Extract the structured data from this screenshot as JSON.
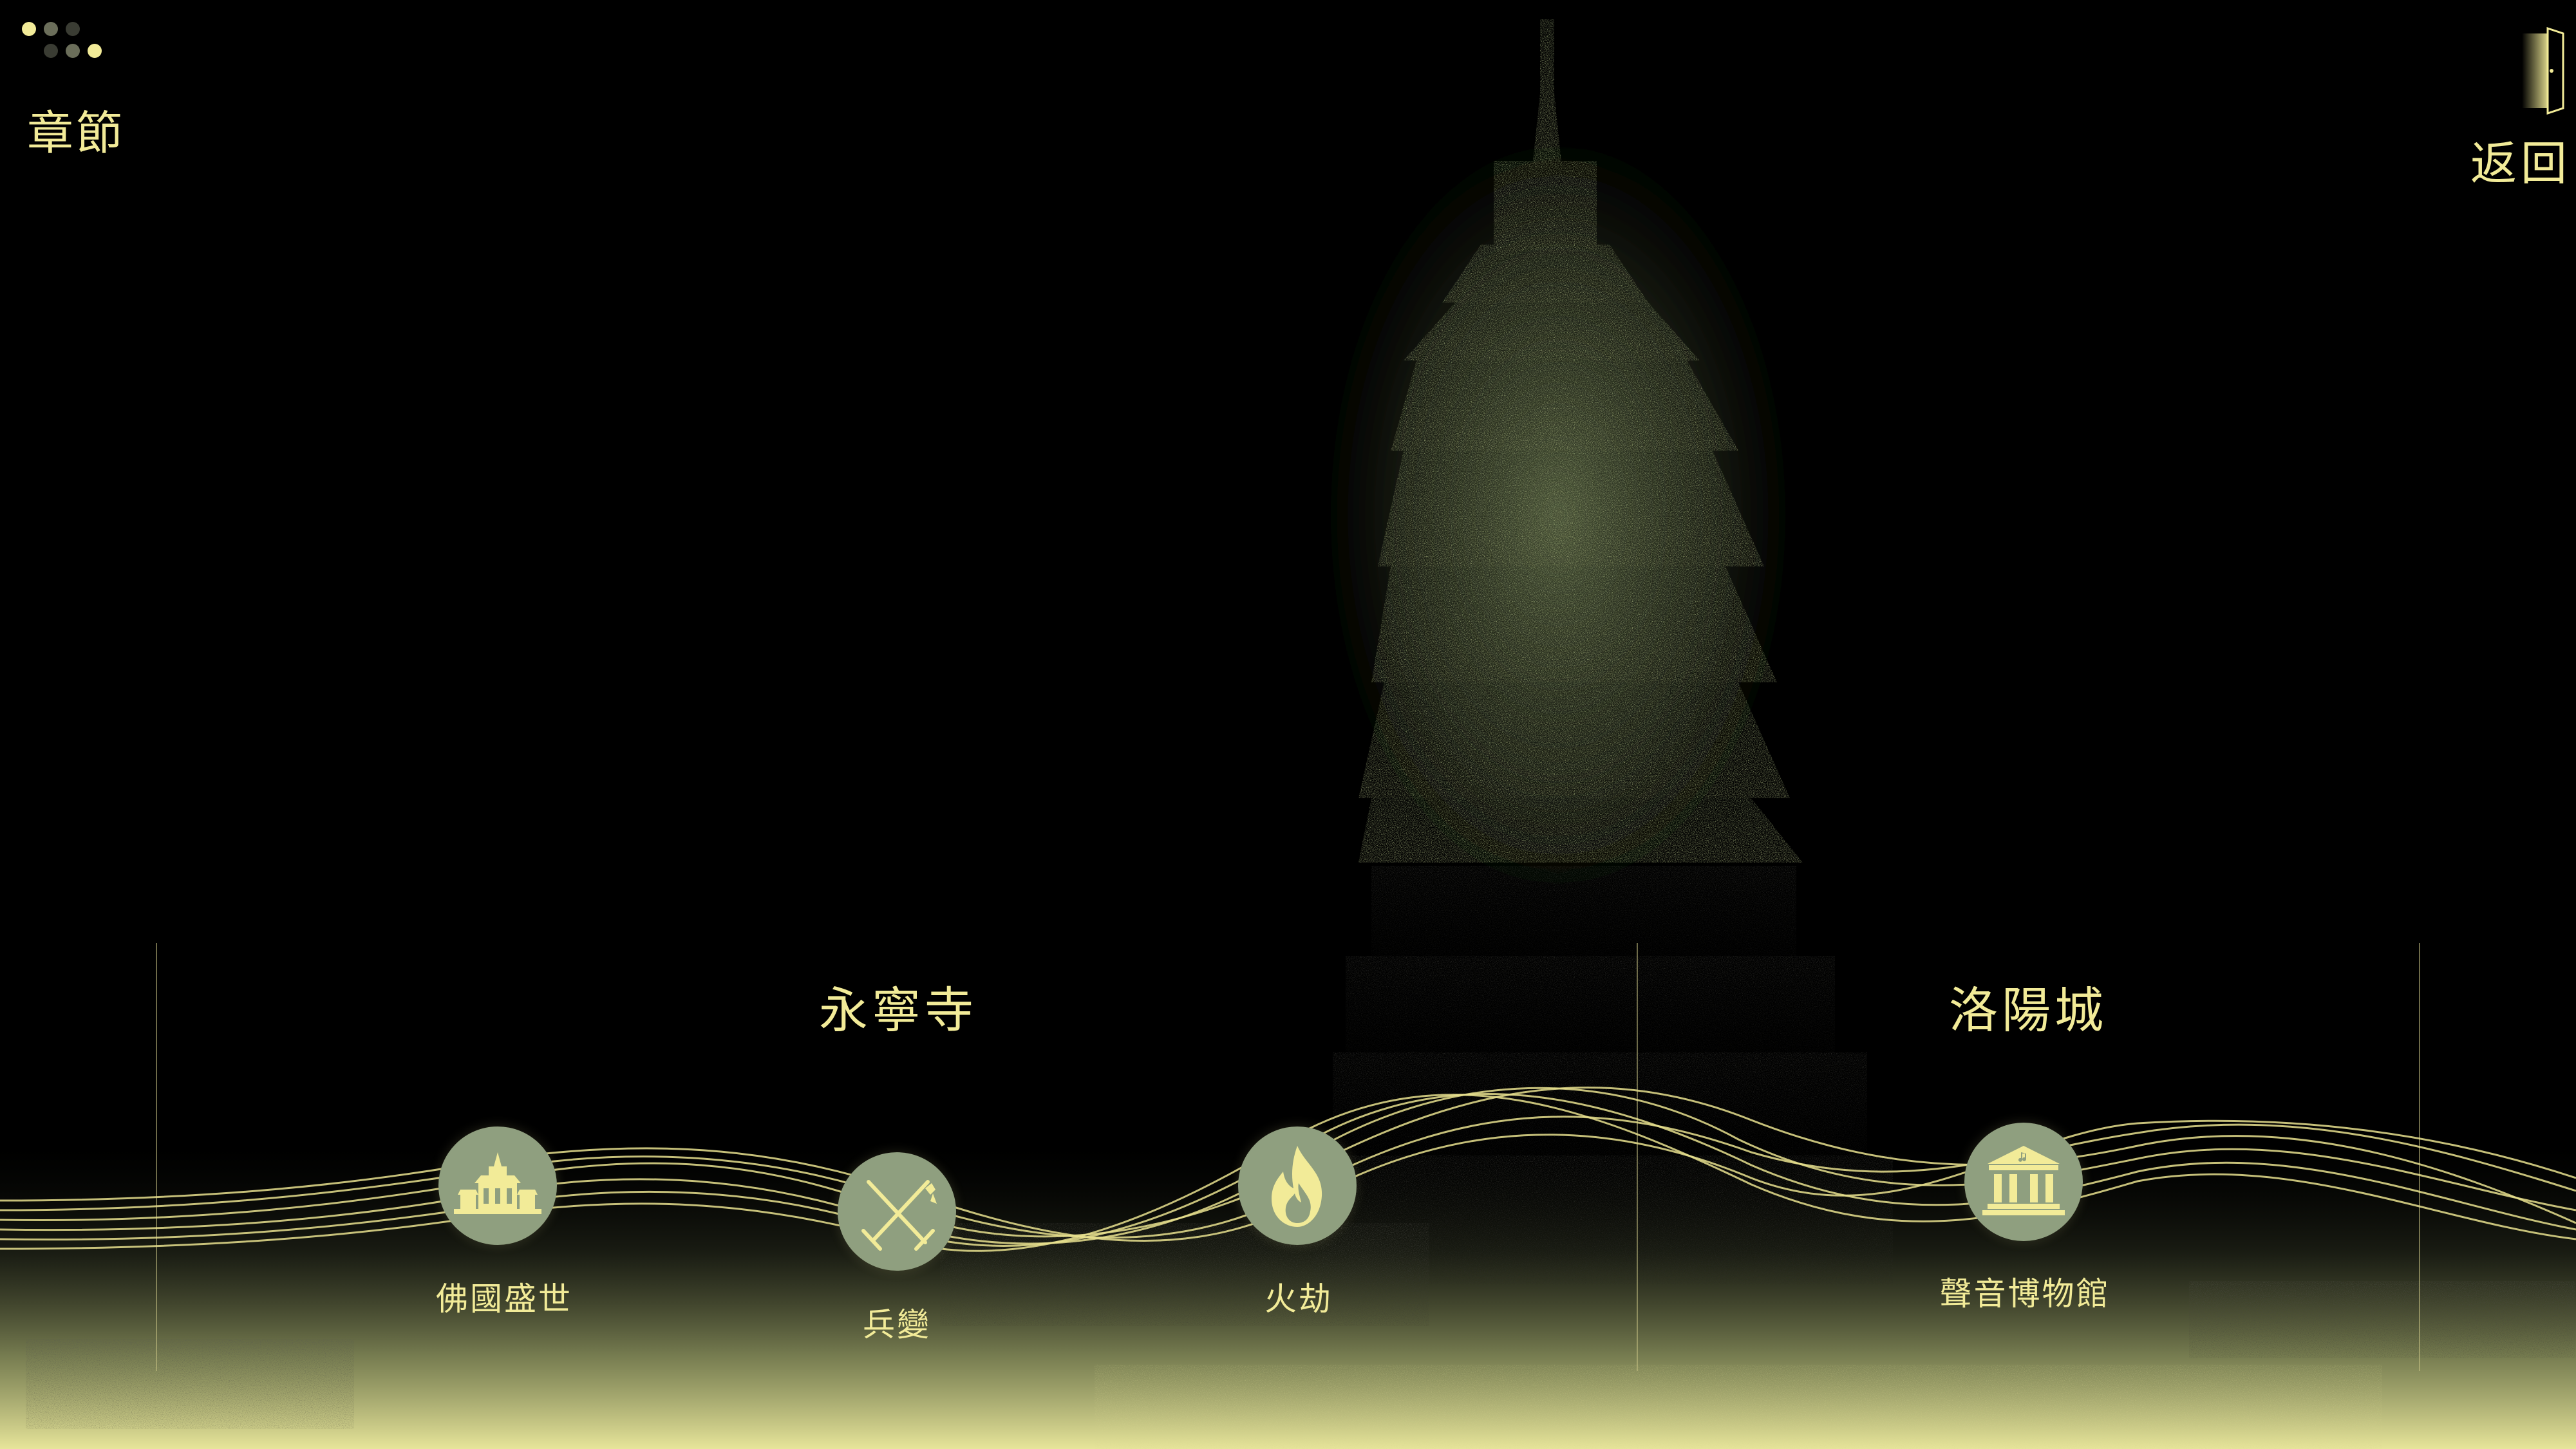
{
  "nav": {
    "chapters_label": "章節",
    "back_label": "返回"
  },
  "sections": [
    {
      "title": "永寧寺"
    },
    {
      "title": "洛陽城"
    }
  ],
  "chapters": [
    {
      "label": "佛國盛世",
      "icon": "palace-icon"
    },
    {
      "label": "兵變",
      "icon": "crossed-swords-icon"
    },
    {
      "label": "火劫",
      "icon": "fire-icon"
    },
    {
      "label": "聲音博物館",
      "icon": "museum-icon"
    }
  ],
  "colors": {
    "accent": "#f2eb98",
    "node_fill": "#8f9f7f",
    "background": "#000000",
    "pagoda_glow": "#9fb07a"
  }
}
